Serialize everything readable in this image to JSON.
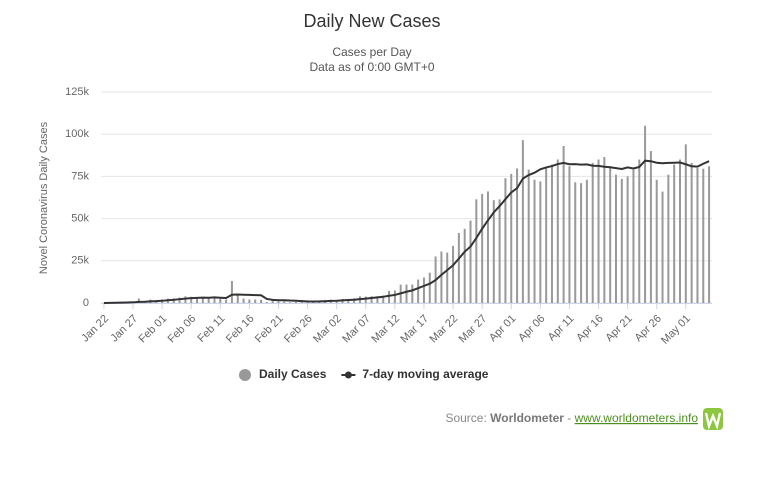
{
  "chart_data": {
    "type": "bar",
    "title": "Daily New Cases",
    "subtitle": [
      "Cases per Day",
      "Data as of 0:00 GMT+0"
    ],
    "y_axis_label": "Novel Coronavirus Daily Cases",
    "categories": [
      "Jan 22",
      null,
      null,
      null,
      null,
      "Jan 27",
      null,
      null,
      null,
      null,
      "Feb 01",
      null,
      null,
      null,
      null,
      "Feb 06",
      null,
      null,
      null,
      null,
      "Feb 11",
      null,
      null,
      null,
      null,
      "Feb 16",
      null,
      null,
      null,
      null,
      "Feb 21",
      null,
      null,
      null,
      null,
      "Feb 26",
      null,
      null,
      null,
      null,
      "Mar 02",
      null,
      null,
      null,
      null,
      "Mar 07",
      null,
      null,
      null,
      null,
      "Mar 12",
      null,
      null,
      null,
      null,
      "Mar 17",
      null,
      null,
      null,
      null,
      "Mar 22",
      null,
      null,
      null,
      null,
      "Mar 27",
      null,
      null,
      null,
      null,
      "Apr 01",
      null,
      null,
      null,
      null,
      "Apr 06",
      null,
      null,
      null,
      null,
      "Apr 11",
      null,
      null,
      null,
      null,
      "Apr 16",
      null,
      null,
      null,
      null,
      "Apr 21",
      null,
      null,
      null,
      null,
      "Apr 26",
      null,
      null,
      null,
      null,
      "May 01",
      null,
      null,
      null,
      null
    ],
    "series": [
      {
        "name": "Daily Cases",
        "color": "#999999",
        "values": [
          0,
          98,
          287,
          493,
          684,
          809,
          2651,
          588,
          2068,
          1692,
          2111,
          2604,
          2834,
          3239,
          3915,
          3701,
          3168,
          3476,
          2657,
          3063,
          2538,
          2040,
          13000,
          5195,
          2639,
          2096,
          2050,
          1892,
          553,
          1152,
          926,
          1017,
          441,
          623,
          869,
          945,
          1351,
          1337,
          1807,
          1946,
          1781,
          2364,
          2245,
          2805,
          3966,
          3807,
          4048,
          3954,
          4518,
          7178,
          7452,
          10869,
          10923,
          10944,
          13896,
          15055,
          17966,
          27555,
          30487,
          29870,
          33853,
          41452,
          43911,
          48800,
          61420,
          64566,
          66100,
          60900,
          61400,
          73900,
          76500,
          79700,
          96500,
          79000,
          73000,
          72000,
          80000,
          82000,
          85000,
          93000,
          81000,
          71500,
          71000,
          73000,
          83000,
          85000,
          86500,
          81000,
          76000,
          73500,
          75000,
          79000,
          85000,
          105000,
          90000,
          73000,
          66000,
          76000,
          82000,
          85000,
          94000,
          83000,
          80000,
          79500,
          81000
        ]
      },
      {
        "name": "7-day moving average",
        "color": "#333333",
        "type": "line",
        "values": [
          0,
          50,
          120,
          230,
          320,
          410,
          700,
          720,
          950,
          1080,
          1300,
          1620,
          1890,
          2260,
          2580,
          2880,
          3070,
          3190,
          3140,
          3300,
          3130,
          2950,
          4860,
          5000,
          4860,
          4780,
          4700,
          4560,
          2400,
          1880,
          1650,
          1640,
          1460,
          1370,
          1130,
          930,
          900,
          930,
          1050,
          1230,
          1360,
          1580,
          1800,
          1900,
          2300,
          2620,
          2950,
          3300,
          3670,
          4290,
          4770,
          5690,
          6660,
          7480,
          8800,
          10140,
          11440,
          13600,
          16690,
          19460,
          22350,
          26300,
          30400,
          33400,
          38500,
          44000,
          49000,
          53700,
          57400,
          61500,
          65500,
          68000,
          73700,
          75800,
          77200,
          79200,
          80300,
          81100,
          82300,
          83000,
          82200,
          82300,
          82000,
          82100,
          81300,
          81200,
          80700,
          80400,
          79900,
          79400,
          80300,
          79700,
          80600,
          84300,
          84000,
          83100,
          82800,
          83000,
          83100,
          83200,
          82200,
          81000,
          80800,
          82500,
          84000
        ]
      }
    ],
    "ylim": [
      0,
      125000
    ],
    "yticks": [
      {
        "value": 0,
        "label": "0"
      },
      {
        "value": 25000,
        "label": "25k"
      },
      {
        "value": 50000,
        "label": "50k"
      },
      {
        "value": 75000,
        "label": "75k"
      },
      {
        "value": 100000,
        "label": "100k"
      },
      {
        "value": 125000,
        "label": "125k"
      }
    ],
    "grid": true,
    "legend": "bottom",
    "credits": {
      "prefix": "Source: ",
      "source": "Worldometer",
      "separator": " - ",
      "url": "www.worldometers.info"
    }
  }
}
